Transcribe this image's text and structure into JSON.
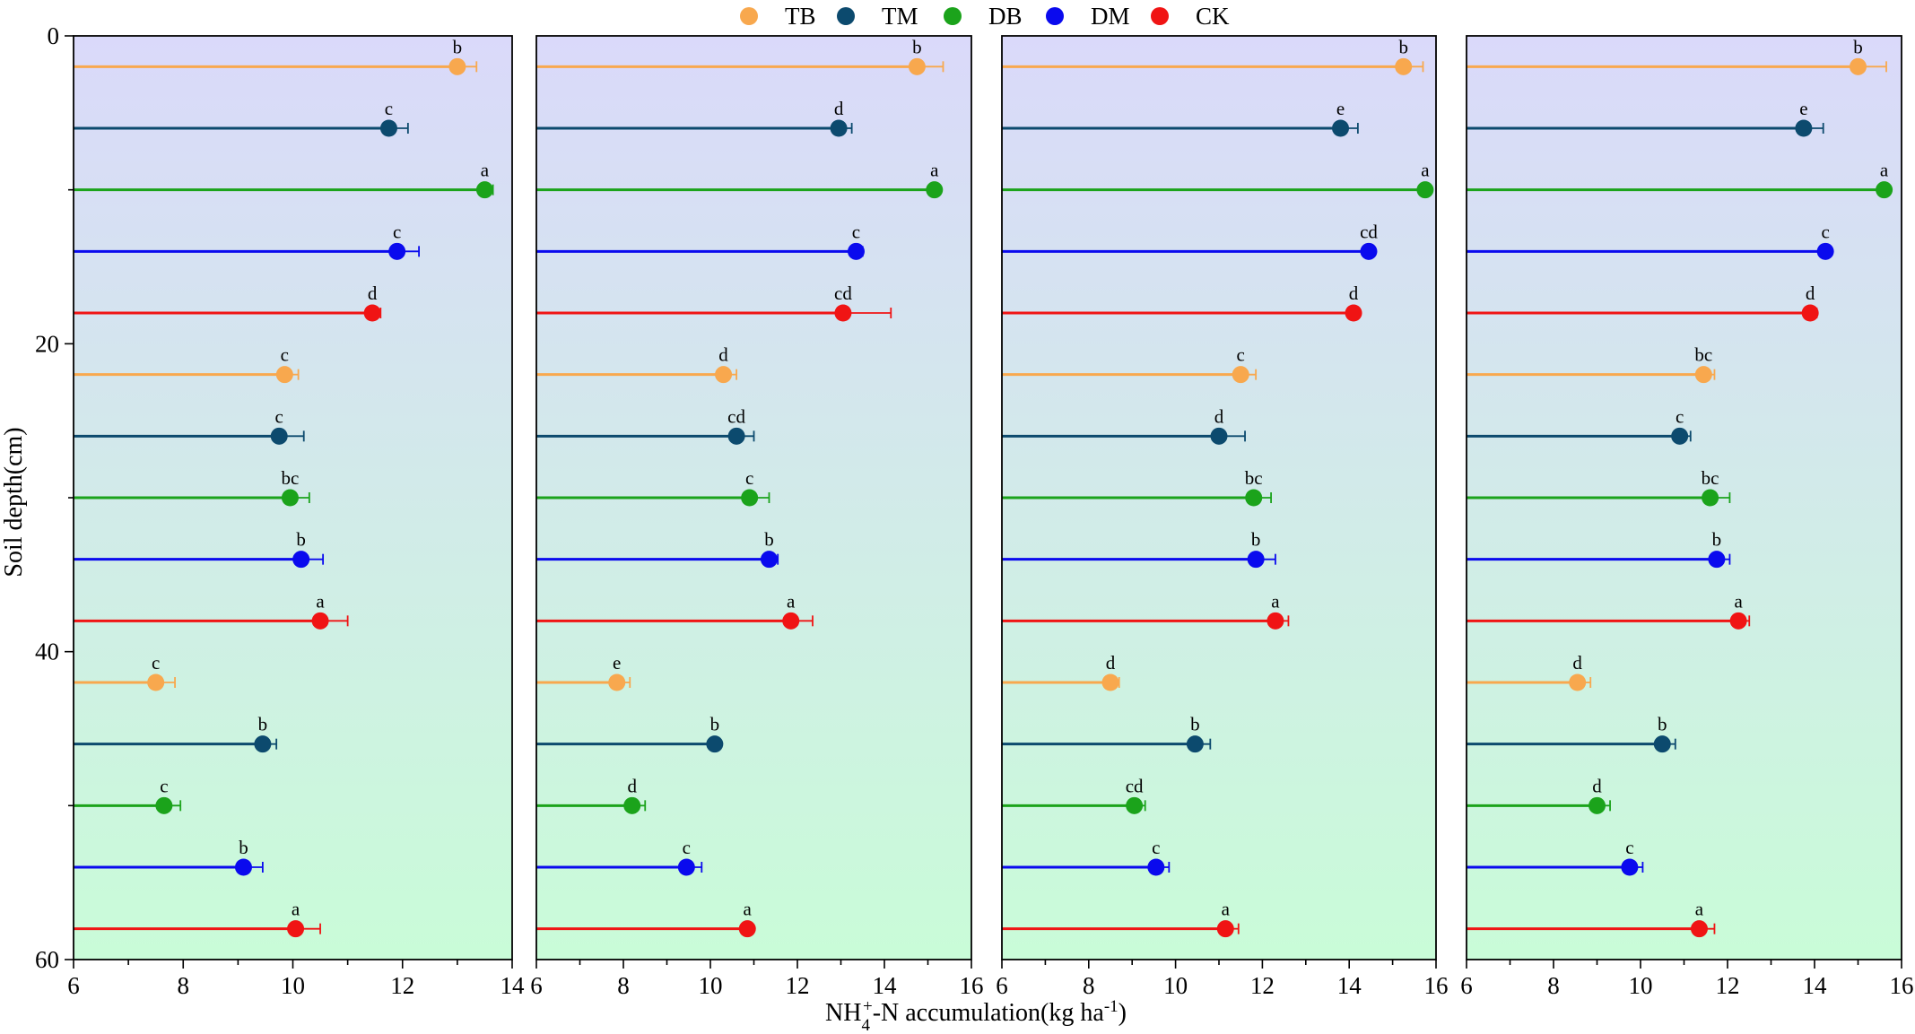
{
  "legend": [
    {
      "key": "TB",
      "label": "TB",
      "color": "#F8A84E"
    },
    {
      "key": "TM",
      "label": "TM",
      "color": "#0C4A6E"
    },
    {
      "key": "DB",
      "label": "DB",
      "color": "#1BA31B"
    },
    {
      "key": "DM",
      "label": "DM",
      "color": "#0A0AEE"
    },
    {
      "key": "CK",
      "label": "CK",
      "color": "#F01414"
    }
  ],
  "y_axis": {
    "title": "Soil depth(cm)",
    "ticks": [
      "0",
      "20",
      "40",
      "60"
    ],
    "ylim": [
      0,
      60
    ],
    "inverted": true
  },
  "x_axis": {
    "title_main": "NH",
    "title_sub": "4",
    "title_sup": "+",
    "title_rest": "-N accumulation(kg ha",
    "title_sup2": "-1",
    "title_end": ")"
  },
  "background_gradient": {
    "top": "#DAD9FA",
    "bottom": "#C9FCD8"
  },
  "chart_data": [
    {
      "type": "bar",
      "orientation": "horizontal",
      "xlim": [
        6,
        14
      ],
      "xticks": [
        "6",
        "8",
        "10",
        "12",
        "14"
      ],
      "depth_layers": [
        "0-20",
        "20-40",
        "40-60"
      ],
      "bars": [
        {
          "series": "TB",
          "depth": 2,
          "value": 13.0,
          "error": 0.35,
          "sig": "b"
        },
        {
          "series": "TM",
          "depth": 6,
          "value": 11.75,
          "error": 0.35,
          "sig": "c"
        },
        {
          "series": "DB",
          "depth": 10,
          "value": 13.5,
          "error": 0.15,
          "sig": "a"
        },
        {
          "series": "DM",
          "depth": 14,
          "value": 11.9,
          "error": 0.4,
          "sig": "c"
        },
        {
          "series": "CK",
          "depth": 18,
          "value": 11.45,
          "error": 0.15,
          "sig": "d"
        },
        {
          "series": "TB",
          "depth": 22,
          "value": 9.85,
          "error": 0.25,
          "sig": "c"
        },
        {
          "series": "TM",
          "depth": 26,
          "value": 9.75,
          "error": 0.45,
          "sig": "c"
        },
        {
          "series": "DB",
          "depth": 30,
          "value": 9.95,
          "error": 0.35,
          "sig": "bc"
        },
        {
          "series": "DM",
          "depth": 34,
          "value": 10.15,
          "error": 0.4,
          "sig": "b"
        },
        {
          "series": "CK",
          "depth": 38,
          "value": 10.5,
          "error": 0.5,
          "sig": "a"
        },
        {
          "series": "TB",
          "depth": 42,
          "value": 7.5,
          "error": 0.35,
          "sig": "c"
        },
        {
          "series": "TM",
          "depth": 46,
          "value": 9.45,
          "error": 0.25,
          "sig": "b"
        },
        {
          "series": "DB",
          "depth": 50,
          "value": 7.65,
          "error": 0.3,
          "sig": "c"
        },
        {
          "series": "DM",
          "depth": 54,
          "value": 9.1,
          "error": 0.35,
          "sig": "b"
        },
        {
          "series": "CK",
          "depth": 58,
          "value": 10.05,
          "error": 0.45,
          "sig": "a"
        }
      ]
    },
    {
      "type": "bar",
      "orientation": "horizontal",
      "xlim": [
        6,
        16
      ],
      "xticks": [
        "6",
        "8",
        "10",
        "12",
        "14",
        "16"
      ],
      "depth_layers": [
        "0-20",
        "20-40",
        "40-60"
      ],
      "bars": [
        {
          "series": "TB",
          "depth": 2,
          "value": 14.75,
          "error": 0.6,
          "sig": "b"
        },
        {
          "series": "TM",
          "depth": 6,
          "value": 12.95,
          "error": 0.3,
          "sig": "d"
        },
        {
          "series": "DB",
          "depth": 10,
          "value": 15.15,
          "error": 0.1,
          "sig": "a"
        },
        {
          "series": "DM",
          "depth": 14,
          "value": 13.35,
          "error": 0.15,
          "sig": "c"
        },
        {
          "series": "CK",
          "depth": 18,
          "value": 13.05,
          "error": 1.1,
          "sig": "cd"
        },
        {
          "series": "TB",
          "depth": 22,
          "value": 10.3,
          "error": 0.3,
          "sig": "d"
        },
        {
          "series": "TM",
          "depth": 26,
          "value": 10.6,
          "error": 0.4,
          "sig": "cd"
        },
        {
          "series": "DB",
          "depth": 30,
          "value": 10.9,
          "error": 0.45,
          "sig": "c"
        },
        {
          "series": "DM",
          "depth": 34,
          "value": 11.35,
          "error": 0.2,
          "sig": "b"
        },
        {
          "series": "CK",
          "depth": 38,
          "value": 11.85,
          "error": 0.5,
          "sig": "a"
        },
        {
          "series": "TB",
          "depth": 42,
          "value": 7.85,
          "error": 0.3,
          "sig": "e"
        },
        {
          "series": "TM",
          "depth": 46,
          "value": 10.1,
          "error": 0.1,
          "sig": "b"
        },
        {
          "series": "DB",
          "depth": 50,
          "value": 8.2,
          "error": 0.3,
          "sig": "d"
        },
        {
          "series": "DM",
          "depth": 54,
          "value": 9.45,
          "error": 0.35,
          "sig": "c"
        },
        {
          "series": "CK",
          "depth": 58,
          "value": 10.85,
          "error": 0.1,
          "sig": "a"
        }
      ]
    },
    {
      "type": "bar",
      "orientation": "horizontal",
      "xlim": [
        6,
        16
      ],
      "xticks": [
        "6",
        "8",
        "10",
        "12",
        "14",
        "16"
      ],
      "depth_layers": [
        "0-20",
        "20-40",
        "40-60"
      ],
      "bars": [
        {
          "series": "TB",
          "depth": 2,
          "value": 15.25,
          "error": 0.45,
          "sig": "b"
        },
        {
          "series": "TM",
          "depth": 6,
          "value": 13.8,
          "error": 0.4,
          "sig": "e"
        },
        {
          "series": "DB",
          "depth": 10,
          "value": 15.75,
          "error": 0.1,
          "sig": "a"
        },
        {
          "series": "DM",
          "depth": 14,
          "value": 14.45,
          "error": 0.1,
          "sig": "cd"
        },
        {
          "series": "CK",
          "depth": 18,
          "value": 14.1,
          "error": 0.1,
          "sig": "d"
        },
        {
          "series": "TB",
          "depth": 22,
          "value": 11.5,
          "error": 0.35,
          "sig": "c"
        },
        {
          "series": "TM",
          "depth": 26,
          "value": 11.0,
          "error": 0.6,
          "sig": "d"
        },
        {
          "series": "DB",
          "depth": 30,
          "value": 11.8,
          "error": 0.4,
          "sig": "bc"
        },
        {
          "series": "DM",
          "depth": 34,
          "value": 11.85,
          "error": 0.45,
          "sig": "b"
        },
        {
          "series": "CK",
          "depth": 38,
          "value": 12.3,
          "error": 0.3,
          "sig": "a"
        },
        {
          "series": "TB",
          "depth": 42,
          "value": 8.5,
          "error": 0.2,
          "sig": "d"
        },
        {
          "series": "TM",
          "depth": 46,
          "value": 10.45,
          "error": 0.35,
          "sig": "b"
        },
        {
          "series": "DB",
          "depth": 50,
          "value": 9.05,
          "error": 0.25,
          "sig": "cd"
        },
        {
          "series": "DM",
          "depth": 54,
          "value": 9.55,
          "error": 0.3,
          "sig": "c"
        },
        {
          "series": "CK",
          "depth": 58,
          "value": 11.15,
          "error": 0.3,
          "sig": "a"
        }
      ]
    },
    {
      "type": "bar",
      "orientation": "horizontal",
      "xlim": [
        6,
        16
      ],
      "xticks": [
        "6",
        "8",
        "10",
        "12",
        "14",
        "16"
      ],
      "depth_layers": [
        "0-20",
        "20-40",
        "40-60"
      ],
      "bars": [
        {
          "series": "TB",
          "depth": 2,
          "value": 15.0,
          "error": 0.65,
          "sig": "b"
        },
        {
          "series": "TM",
          "depth": 6,
          "value": 13.75,
          "error": 0.45,
          "sig": "e"
        },
        {
          "series": "DB",
          "depth": 10,
          "value": 15.6,
          "error": 0.05,
          "sig": "a"
        },
        {
          "series": "DM",
          "depth": 14,
          "value": 14.25,
          "error": 0.1,
          "sig": "c"
        },
        {
          "series": "CK",
          "depth": 18,
          "value": 13.9,
          "error": 0.15,
          "sig": "d"
        },
        {
          "series": "TB",
          "depth": 22,
          "value": 11.45,
          "error": 0.25,
          "sig": "bc"
        },
        {
          "series": "TM",
          "depth": 26,
          "value": 10.9,
          "error": 0.25,
          "sig": "c"
        },
        {
          "series": "DB",
          "depth": 30,
          "value": 11.6,
          "error": 0.45,
          "sig": "bc"
        },
        {
          "series": "DM",
          "depth": 34,
          "value": 11.75,
          "error": 0.3,
          "sig": "b"
        },
        {
          "series": "CK",
          "depth": 38,
          "value": 12.25,
          "error": 0.25,
          "sig": "a"
        },
        {
          "series": "TB",
          "depth": 42,
          "value": 8.55,
          "error": 0.3,
          "sig": "d"
        },
        {
          "series": "TM",
          "depth": 46,
          "value": 10.5,
          "error": 0.3,
          "sig": "b"
        },
        {
          "series": "DB",
          "depth": 50,
          "value": 9.0,
          "error": 0.3,
          "sig": "d"
        },
        {
          "series": "DM",
          "depth": 54,
          "value": 9.75,
          "error": 0.3,
          "sig": "c"
        },
        {
          "series": "CK",
          "depth": 58,
          "value": 11.35,
          "error": 0.35,
          "sig": "a"
        }
      ]
    }
  ]
}
